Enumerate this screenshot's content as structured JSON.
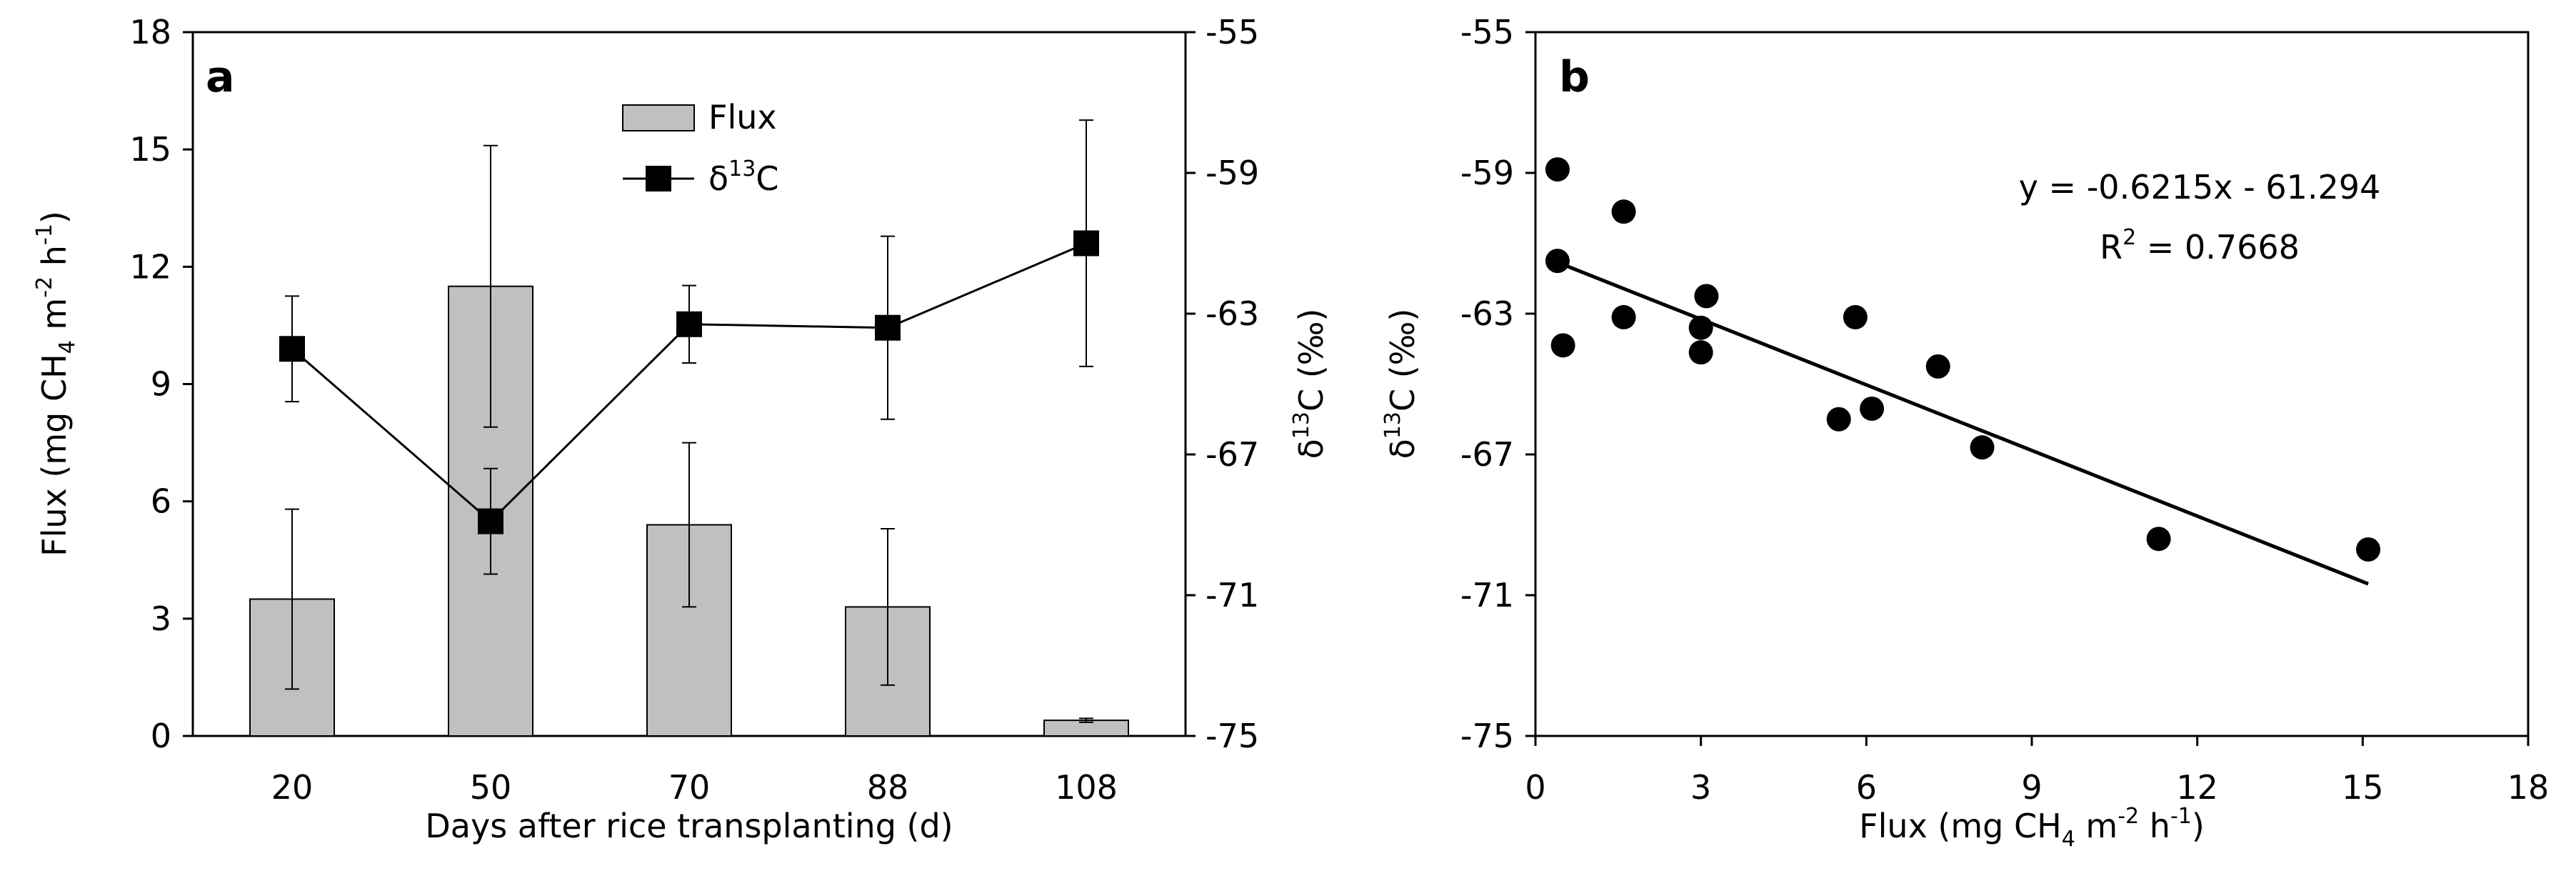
{
  "chart_data": [
    {
      "type": "bar+line",
      "panel_label": "a",
      "xlabel": "Days after rice transplanting (d)",
      "ylabel": "Flux (mg CH4 m-2 h-1)",
      "ylabel_parts": {
        "pre": "Flux (mg CH",
        "sub": "4",
        "mid": " m",
        "sup1": "-2",
        "mid2": " h",
        "sup2": "-1",
        "post": ")"
      },
      "y2label_parts": {
        "delta": "δ",
        "sup": "13",
        "post": "C (‰)"
      },
      "categories": [
        "20",
        "50",
        "70",
        "88",
        "108"
      ],
      "ylim": [
        0,
        18
      ],
      "yticks": [
        "0",
        "3",
        "6",
        "9",
        "12",
        "15",
        "18"
      ],
      "y2lim": [
        -75,
        -55
      ],
      "y2ticks": [
        "-55",
        "-59",
        "-63",
        "-67",
        "-71",
        "-75"
      ],
      "legend": {
        "flux": "Flux",
        "delta_pre": "δ",
        "delta_sup": "13",
        "delta_post": "C"
      },
      "series": [
        {
          "name": "Flux",
          "kind": "bar",
          "axis": "left",
          "values": [
            3.5,
            11.5,
            5.4,
            3.3,
            0.4
          ],
          "errors": [
            2.3,
            3.6,
            2.1,
            2.0,
            0.05
          ]
        },
        {
          "name": "δ13C",
          "kind": "line",
          "axis": "right",
          "values": [
            -64.0,
            -68.9,
            -63.3,
            -63.4,
            -61.0
          ],
          "errors": [
            1.5,
            1.5,
            1.1,
            2.6,
            3.5
          ]
        }
      ]
    },
    {
      "type": "scatter",
      "panel_label": "b",
      "xlabel_parts": {
        "pre": "Flux (mg CH",
        "sub": "4",
        "mid": " m",
        "sup1": "-2",
        "mid2": " h",
        "sup2": "-1",
        "post": ")"
      },
      "ylabel_parts": {
        "delta": "δ",
        "sup": "13",
        "post": "C (‰)"
      },
      "xlim": [
        0,
        18
      ],
      "xticks": [
        "0",
        "3",
        "6",
        "9",
        "12",
        "15",
        "18"
      ],
      "ylim": [
        -75,
        -55
      ],
      "yticks": [
        "-55",
        "-59",
        "-63",
        "-67",
        "-71",
        "-75"
      ],
      "points": [
        [
          0.4,
          -58.9
        ],
        [
          0.4,
          -61.5
        ],
        [
          0.5,
          -63.9
        ],
        [
          1.6,
          -60.1
        ],
        [
          1.6,
          -63.1
        ],
        [
          3.0,
          -63.4
        ],
        [
          3.0,
          -64.1
        ],
        [
          3.1,
          -62.5
        ],
        [
          5.5,
          -66.0
        ],
        [
          5.8,
          -63.1
        ],
        [
          6.1,
          -65.7
        ],
        [
          7.3,
          -64.5
        ],
        [
          8.1,
          -66.8
        ],
        [
          11.3,
          -69.4
        ],
        [
          15.1,
          -69.7
        ]
      ],
      "fit": {
        "slope": -0.6215,
        "intercept": -61.294,
        "x_range": [
          0.4,
          15.1
        ]
      },
      "equation": "y = -0.6215x - 61.294",
      "r2": {
        "pre": "R",
        "sup": "2",
        "post": " = 0.7668"
      }
    }
  ]
}
